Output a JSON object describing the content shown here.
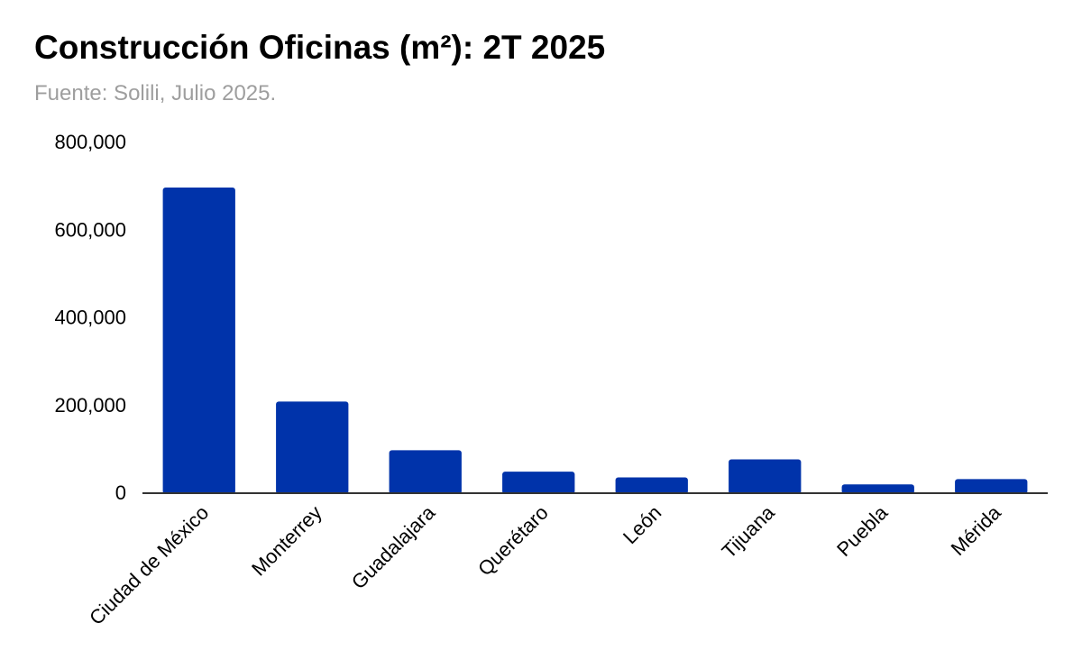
{
  "chart_data": {
    "type": "bar",
    "title": "Construcción Oficinas (m²): 2T 2025",
    "subtitle": "Fuente: Solili, Julio 2025.",
    "categories": [
      "Ciudad de México",
      "Monterrey",
      "Guadalajara",
      "Querétaro",
      "León",
      "Tijuana",
      "Puebla",
      "Mérida"
    ],
    "values": [
      695000,
      207000,
      96000,
      47000,
      34000,
      75000,
      18000,
      30000
    ],
    "ylim": [
      0,
      800000
    ],
    "yticks": [
      0,
      200000,
      400000,
      600000,
      800000
    ],
    "ytick_labels": [
      "0",
      "200,000",
      "400,000",
      "600,000",
      "800,000"
    ],
    "xlabel": "",
    "ylabel": "",
    "grid": false,
    "legend": "none",
    "bar_color": "#0033aa"
  }
}
